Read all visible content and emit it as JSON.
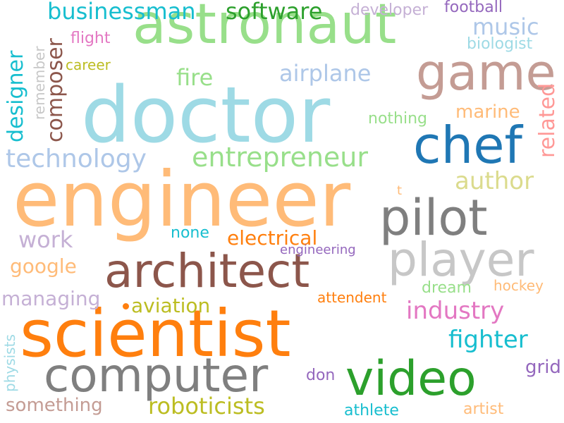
{
  "words": {
    "doctor": {
      "text": "doctor",
      "color": "#9edae5"
    },
    "engineer": {
      "text": "engineer",
      "color": "#ffbb78"
    },
    "astronaut": {
      "text": "astronaut",
      "color": "#98df8a"
    },
    "scientist": {
      "text": "scientist",
      "color": "#ff7f0e"
    },
    "architect": {
      "text": "architect",
      "color": "#8c564b"
    },
    "computer": {
      "text": "computer",
      "color": "#7f7f7f"
    },
    "video": {
      "text": "video",
      "color": "#2ca02c"
    },
    "chef": {
      "text": "chef",
      "color": "#1f77b4"
    },
    "game": {
      "text": "game",
      "color": "#c49c94"
    },
    "pilot": {
      "text": "pilot",
      "color": "#7f7f7f"
    },
    "player": {
      "text": "player",
      "color": "#c7c7c7"
    },
    "entrepreneur": {
      "text": "entrepreneur",
      "color": "#98df8a"
    },
    "technology": {
      "text": "technology",
      "color": "#aec7e8"
    },
    "software": {
      "text": "software",
      "color": "#2ca02c"
    },
    "businessman": {
      "text": "businessman",
      "color": "#17becf"
    },
    "airplane": {
      "text": "airplane",
      "color": "#aec7e8"
    },
    "fire": {
      "text": "fire",
      "color": "#98df8a"
    },
    "music": {
      "text": "music",
      "color": "#aec7e8"
    },
    "author": {
      "text": "author",
      "color": "#dbdb8d"
    },
    "industry": {
      "text": "industry",
      "color": "#e377c2"
    },
    "fighter": {
      "text": "fighter",
      "color": "#17becf"
    },
    "roboticists": {
      "text": "roboticists",
      "color": "#bcbd22"
    },
    "electrical": {
      "text": "electrical",
      "color": "#ff7f0e"
    },
    "google": {
      "text": "google",
      "color": "#ffbb78"
    },
    "work": {
      "text": "work",
      "color": "#c5b0d5"
    },
    "aviation": {
      "text": "aviation",
      "color": "#bcbd22"
    },
    "managing": {
      "text": "managing",
      "color": "#c5b0d5"
    },
    "something": {
      "text": "something",
      "color": "#c49c94"
    },
    "marine": {
      "text": "marine",
      "color": "#ffbb78"
    },
    "hockey": {
      "text": "hockey",
      "color": "#ffbb78"
    },
    "grid": {
      "text": "grid",
      "color": "#9467bd"
    },
    "artist": {
      "text": "artist",
      "color": "#ffbb78"
    },
    "athlete": {
      "text": "athlete",
      "color": "#17becf"
    },
    "don": {
      "text": "don",
      "color": "#9467bd"
    },
    "dream": {
      "text": "dream",
      "color": "#98df8a"
    },
    "attendent": {
      "text": "attendent",
      "color": "#ff7f0e"
    },
    "engineering": {
      "text": "engineering",
      "color": "#9467bd"
    },
    "none": {
      "text": "none",
      "color": "#17becf"
    },
    "t": {
      "text": "t",
      "color": "#ffbb78"
    },
    "nothing": {
      "text": "nothing",
      "color": "#98df8a"
    },
    "career": {
      "text": "career",
      "color": "#bcbd22"
    },
    "flight": {
      "text": "flight",
      "color": "#e377c2"
    },
    "developer": {
      "text": "developer",
      "color": "#c5b0d5"
    },
    "football": {
      "text": "football",
      "color": "#9467bd"
    },
    "biologist": {
      "text": "biologist",
      "color": "#9edae5"
    },
    "designer": {
      "text": "designer",
      "color": "#17becf"
    },
    "composer": {
      "text": "composer",
      "color": "#8c564b"
    },
    "remember": {
      "text": "remember",
      "color": "#c7c7c7"
    },
    "related": {
      "text": "related",
      "color": "#ff9896"
    },
    "physists": {
      "text": "physists",
      "color": "#9edae5"
    }
  },
  "dot_color": "#ff7f0e"
}
